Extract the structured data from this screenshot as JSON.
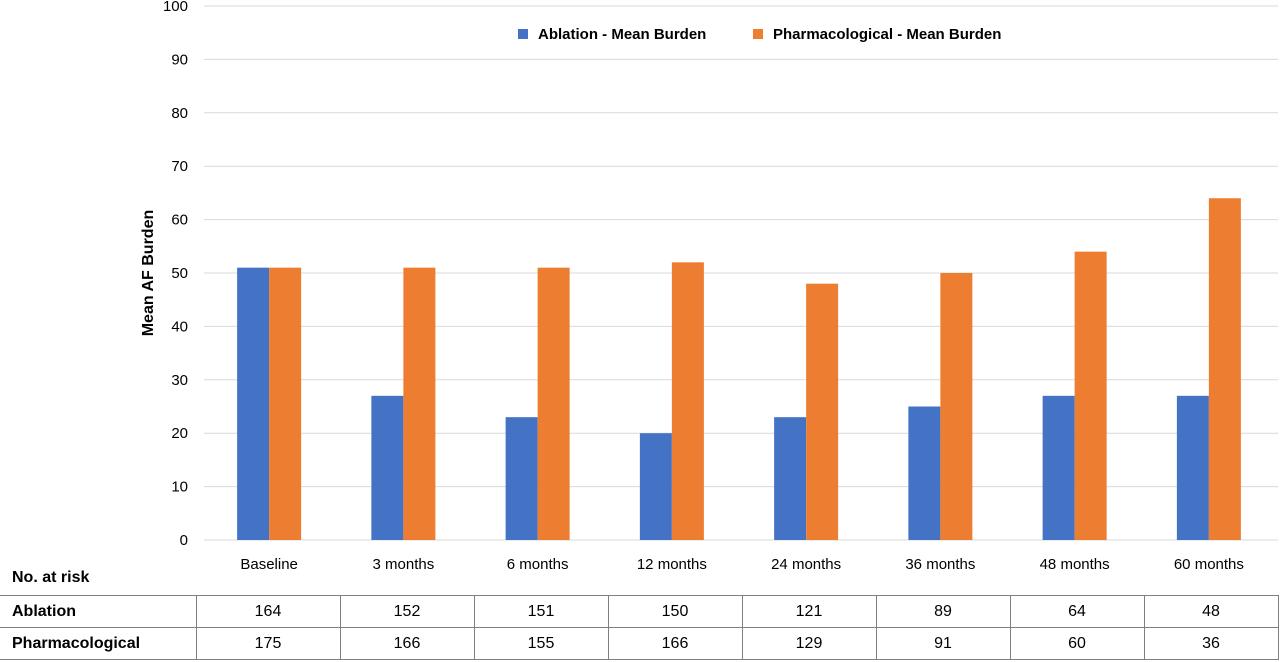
{
  "chart_data": {
    "type": "bar",
    "title": "",
    "xlabel": "",
    "ylabel": "Mean AF Burden",
    "ylim": [
      0,
      100
    ],
    "yticks": [
      0,
      10,
      20,
      30,
      40,
      50,
      60,
      70,
      80,
      90,
      100
    ],
    "grid": true,
    "legend_position": "top-center",
    "categories": [
      "Baseline",
      "3 months",
      "6 months",
      "12 months",
      "24 months",
      "36 months",
      "48 months",
      "60 months"
    ],
    "series": [
      {
        "name": "Ablation - Mean Burden",
        "color": "#4472c4",
        "values": [
          51,
          27,
          23,
          20,
          23,
          25,
          27,
          27
        ]
      },
      {
        "name": "Pharmacological - Mean Burden",
        "color": "#ed7d31",
        "values": [
          51,
          51,
          51,
          52,
          48,
          50,
          54,
          64
        ]
      }
    ]
  },
  "risk_table": {
    "title": "No. at risk",
    "rows": [
      {
        "label": "Ablation",
        "values": [
          "164",
          "152",
          "151",
          "150",
          "121",
          "89",
          "64",
          "48"
        ]
      },
      {
        "label": "Pharmacological",
        "values": [
          "175",
          "166",
          "155",
          "166",
          "129",
          "91",
          "60",
          "36"
        ]
      }
    ]
  }
}
